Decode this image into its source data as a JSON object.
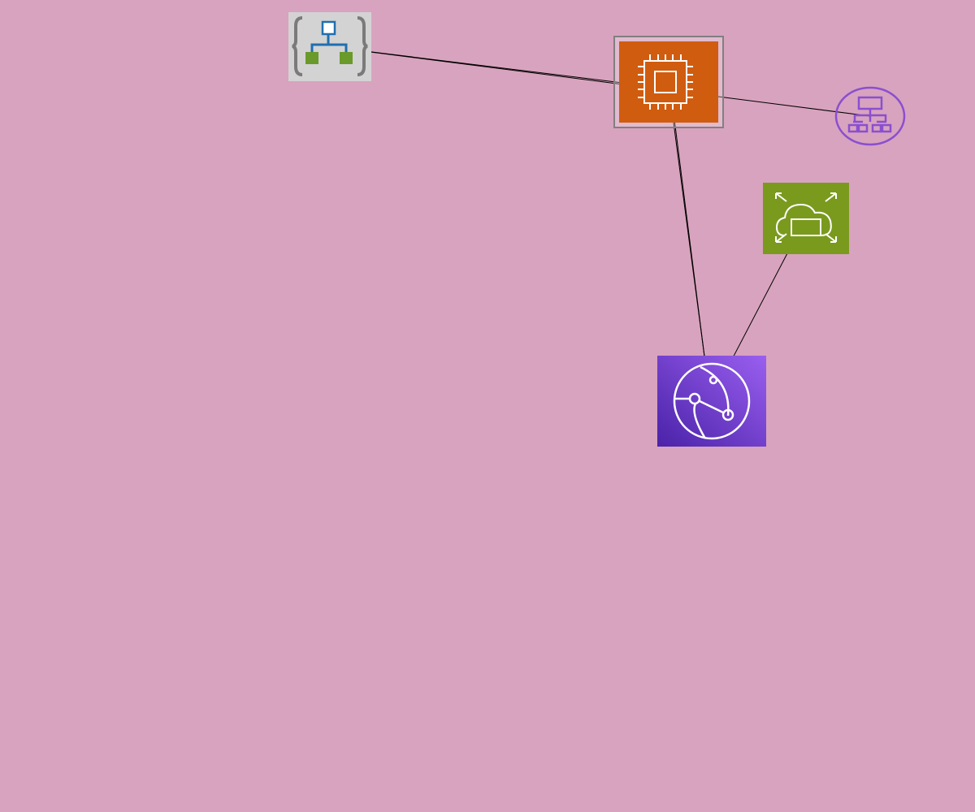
{
  "diagram": {
    "background_color": "#d8a3be",
    "nodes": [
      {
        "id": "logic-app",
        "icon": "azure-logic-app-icon",
        "colors": {
          "bg": "#d3d3d3",
          "brace": "#7a7a7a",
          "tree": "#1f6fb0",
          "leaf": "#6a9a2a"
        }
      },
      {
        "id": "ec2-instance",
        "icon": "aws-ec2-compute-icon",
        "colors": {
          "border": "#808080",
          "fill": "#d05c0f",
          "stroke": "#ffffff"
        }
      },
      {
        "id": "vpc-network",
        "icon": "network-hierarchy-icon",
        "colors": {
          "stroke": "#8a4fd0"
        }
      },
      {
        "id": "auto-scaling",
        "icon": "aws-auto-scaling-icon",
        "colors": {
          "fill": "#7a9a1e",
          "stroke": "#ffffff"
        }
      },
      {
        "id": "cloudfront",
        "icon": "aws-cloudfront-icon",
        "colors": {
          "top": "#9a5ff0",
          "bottom": "#4a22a8",
          "stroke": "#ffffff"
        }
      }
    ],
    "edges": [
      {
        "from": "ec2-instance",
        "to": "logic-app"
      },
      {
        "from": "vpc-network",
        "to": "logic-app"
      },
      {
        "from": "cloudfront",
        "to": "ec2-instance"
      },
      {
        "from": "ec2-instance",
        "to": "cloudfront"
      },
      {
        "from": "cloudfront",
        "to": "auto-scaling"
      }
    ]
  }
}
